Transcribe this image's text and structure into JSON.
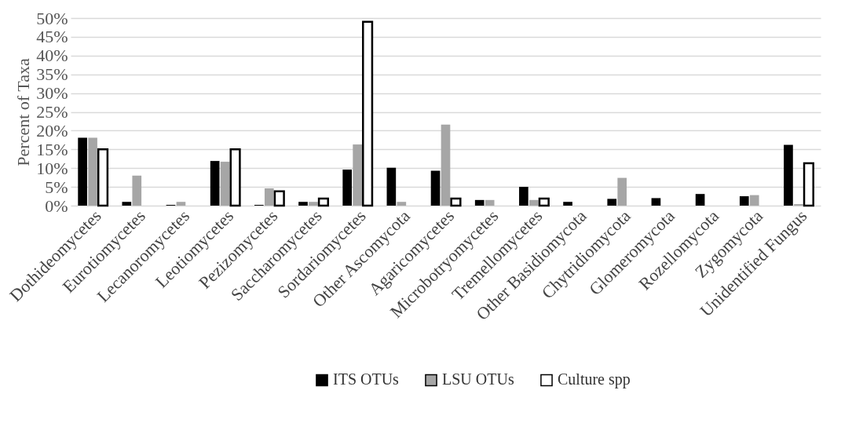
{
  "chart_data": {
    "type": "bar",
    "ylabel": "Percent of Taxa",
    "categories": [
      "Dothideomycetes",
      "Eurotiomycetes",
      "Lecanoromycetes",
      "Leotiomycetes",
      "Pezizomycetes",
      "Saccharomycetes",
      "Sordariomycetes",
      "Other Ascomycota",
      "Agaricomycetes",
      "Microbotryomycetes",
      "Tremellomycetes",
      "Other Basidiomycota",
      "Chytridiomycota",
      "Glomeromycota",
      "Rozellomycota",
      "Zygomycota",
      "Unidentified Fungus"
    ],
    "series": [
      {
        "name": "ITS OTUs",
        "color": "#000000",
        "values": [
          18.1,
          1.0,
          0.2,
          11.9,
          0.2,
          1.0,
          9.6,
          10.1,
          9.3,
          1.5,
          5.0,
          1.0,
          1.8,
          2.0,
          3.1,
          2.5,
          16.2
        ]
      },
      {
        "name": "LSU OTUs",
        "color": "#a6a6a6",
        "values": [
          18.1,
          8.0,
          1.0,
          11.7,
          4.6,
          1.0,
          16.3,
          1.0,
          21.6,
          1.5,
          1.5,
          null,
          7.4,
          null,
          null,
          2.8,
          0.4
        ]
      },
      {
        "name": "Culture spp",
        "color": "#ffffff",
        "values": [
          15.0,
          null,
          null,
          15.0,
          3.8,
          1.9,
          49.0,
          null,
          1.9,
          null,
          1.9,
          null,
          null,
          null,
          null,
          null,
          11.3
        ]
      }
    ],
    "ylim": [
      0,
      50
    ],
    "yticks": [
      {
        "value": 0,
        "label": "0%"
      },
      {
        "value": 5,
        "label": "5%"
      },
      {
        "value": 10,
        "label": "10%"
      },
      {
        "value": 15,
        "label": "15%"
      },
      {
        "value": 20,
        "label": "20%"
      },
      {
        "value": 25,
        "label": "25%"
      },
      {
        "value": 30,
        "label": "30%"
      },
      {
        "value": 35,
        "label": "35%"
      },
      {
        "value": 40,
        "label": "40%"
      },
      {
        "value": 45,
        "label": "45%"
      },
      {
        "value": 50,
        "label": "50%"
      }
    ],
    "grid": "y",
    "legend": "bottom"
  }
}
